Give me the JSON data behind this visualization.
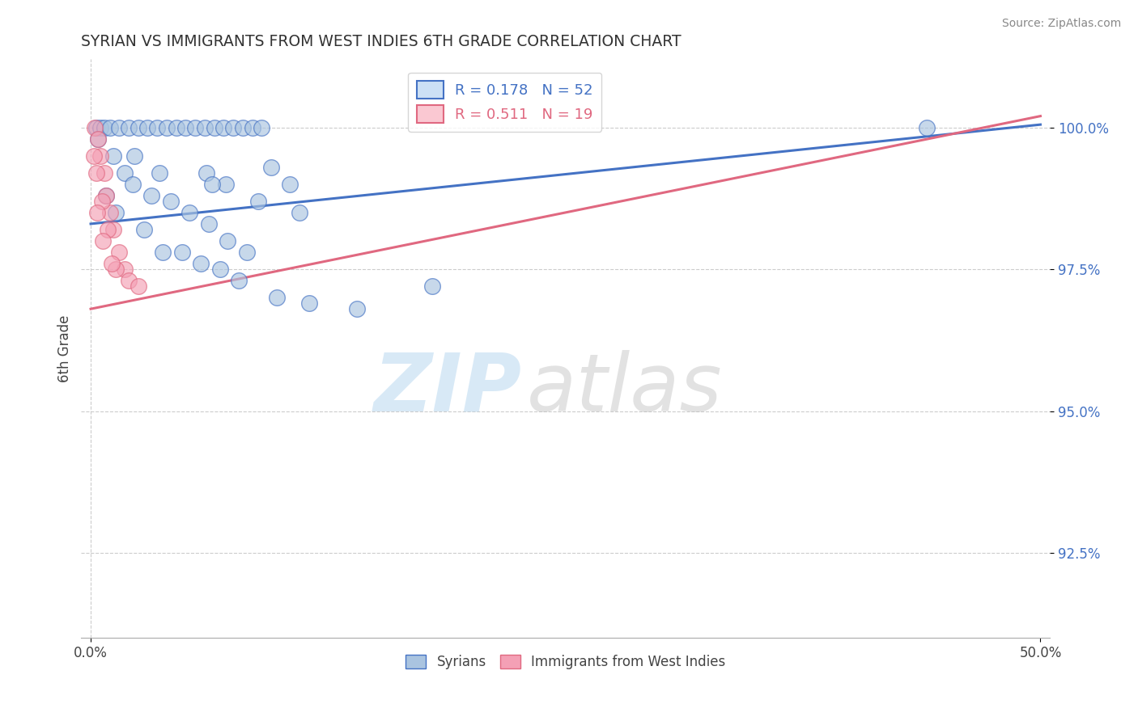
{
  "title": "SYRIAN VS IMMIGRANTS FROM WEST INDIES 6TH GRADE CORRELATION CHART",
  "source": "Source: ZipAtlas.com",
  "xlabel_label": "Syrians",
  "xlabel_label2": "Immigrants from West Indies",
  "ylabel": "6th Grade",
  "xlim": [
    -0.5,
    50.5
  ],
  "ylim": [
    91.0,
    101.2
  ],
  "yticks": [
    92.5,
    95.0,
    97.5,
    100.0
  ],
  "xticks": [
    0.0,
    50.0
  ],
  "xticklabels": [
    "0.0%",
    "50.0%"
  ],
  "yticklabels": [
    "92.5%",
    "95.0%",
    "97.5%",
    "100.0%"
  ],
  "R_blue": 0.178,
  "N_blue": 52,
  "R_pink": 0.511,
  "N_pink": 19,
  "blue_color": "#aac4e0",
  "pink_color": "#f4a0b5",
  "blue_line_color": "#4472c4",
  "pink_line_color": "#e06880",
  "legend_box_blue": "#cce0f5",
  "legend_box_pink": "#fac8d2",
  "blue_scatter_x": [
    0.3,
    0.5,
    0.7,
    1.0,
    1.5,
    2.0,
    2.5,
    3.0,
    3.5,
    4.0,
    4.5,
    5.0,
    5.5,
    6.0,
    6.5,
    7.0,
    7.5,
    8.0,
    8.5,
    9.0,
    1.2,
    1.8,
    2.2,
    3.2,
    4.2,
    5.2,
    6.2,
    7.2,
    8.2,
    9.5,
    10.5,
    11.0,
    0.8,
    1.3,
    2.8,
    3.8,
    5.8,
    6.8,
    7.8,
    4.8,
    6.1,
    7.1,
    8.8,
    9.8,
    11.5,
    14.0,
    18.0,
    44.0,
    0.4,
    2.3,
    3.6,
    6.4
  ],
  "blue_scatter_y": [
    100.0,
    100.0,
    100.0,
    100.0,
    100.0,
    100.0,
    100.0,
    100.0,
    100.0,
    100.0,
    100.0,
    100.0,
    100.0,
    100.0,
    100.0,
    100.0,
    100.0,
    100.0,
    100.0,
    100.0,
    99.5,
    99.2,
    99.0,
    98.8,
    98.7,
    98.5,
    98.3,
    98.0,
    97.8,
    99.3,
    99.0,
    98.5,
    98.8,
    98.5,
    98.2,
    97.8,
    97.6,
    97.5,
    97.3,
    97.8,
    99.2,
    99.0,
    98.7,
    97.0,
    96.9,
    96.8,
    97.2,
    100.0,
    99.8,
    99.5,
    99.2,
    99.0
  ],
  "pink_scatter_x": [
    0.2,
    0.4,
    0.5,
    0.7,
    0.8,
    1.0,
    1.2,
    1.5,
    1.8,
    2.0,
    0.3,
    0.6,
    0.9,
    1.3,
    0.35,
    0.65,
    1.1,
    2.5,
    0.15
  ],
  "pink_scatter_y": [
    100.0,
    99.8,
    99.5,
    99.2,
    98.8,
    98.5,
    98.2,
    97.8,
    97.5,
    97.3,
    99.2,
    98.7,
    98.2,
    97.5,
    98.5,
    98.0,
    97.6,
    97.2,
    99.5
  ],
  "blue_line_x": [
    0.0,
    50.0
  ],
  "blue_line_y": [
    98.3,
    100.05
  ],
  "pink_line_x": [
    0.0,
    50.0
  ],
  "pink_line_y": [
    96.8,
    100.2
  ]
}
